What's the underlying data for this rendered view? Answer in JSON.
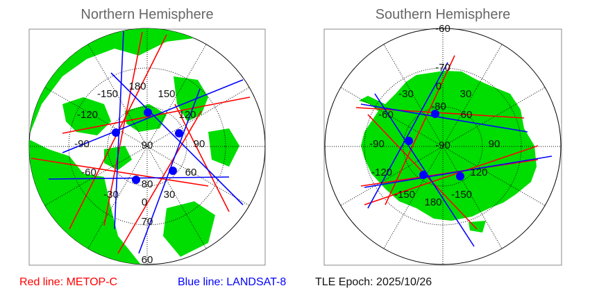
{
  "north": {
    "title": "Northern Hemisphere",
    "lon_labels": [
      "180",
      "150",
      "120",
      "90",
      "60",
      "30",
      "0",
      "-30",
      "-60",
      "-90",
      "-120",
      "-150"
    ],
    "lat_labels": [
      "90",
      "80",
      "70",
      "60"
    ]
  },
  "south": {
    "title": "Southern Hemisphere",
    "lon_labels": [
      "0",
      "30",
      "60",
      "90",
      "120",
      "-150",
      "180",
      "-120",
      "-90",
      "-60",
      "-30",
      "-150"
    ],
    "lat_labels": [
      "-90",
      "-80",
      "-70",
      "-60"
    ]
  },
  "legend": {
    "red_label": "Red line: METOP-C",
    "blue_label": "Blue line: LANDSAT-8",
    "epoch_label": "TLE Epoch: 2025/10/26"
  },
  "colors": {
    "land": "#00dd00",
    "ocean": "#ffffff",
    "metop": "#ff0000",
    "landsat": "#0000ff",
    "title": "#666666"
  }
}
